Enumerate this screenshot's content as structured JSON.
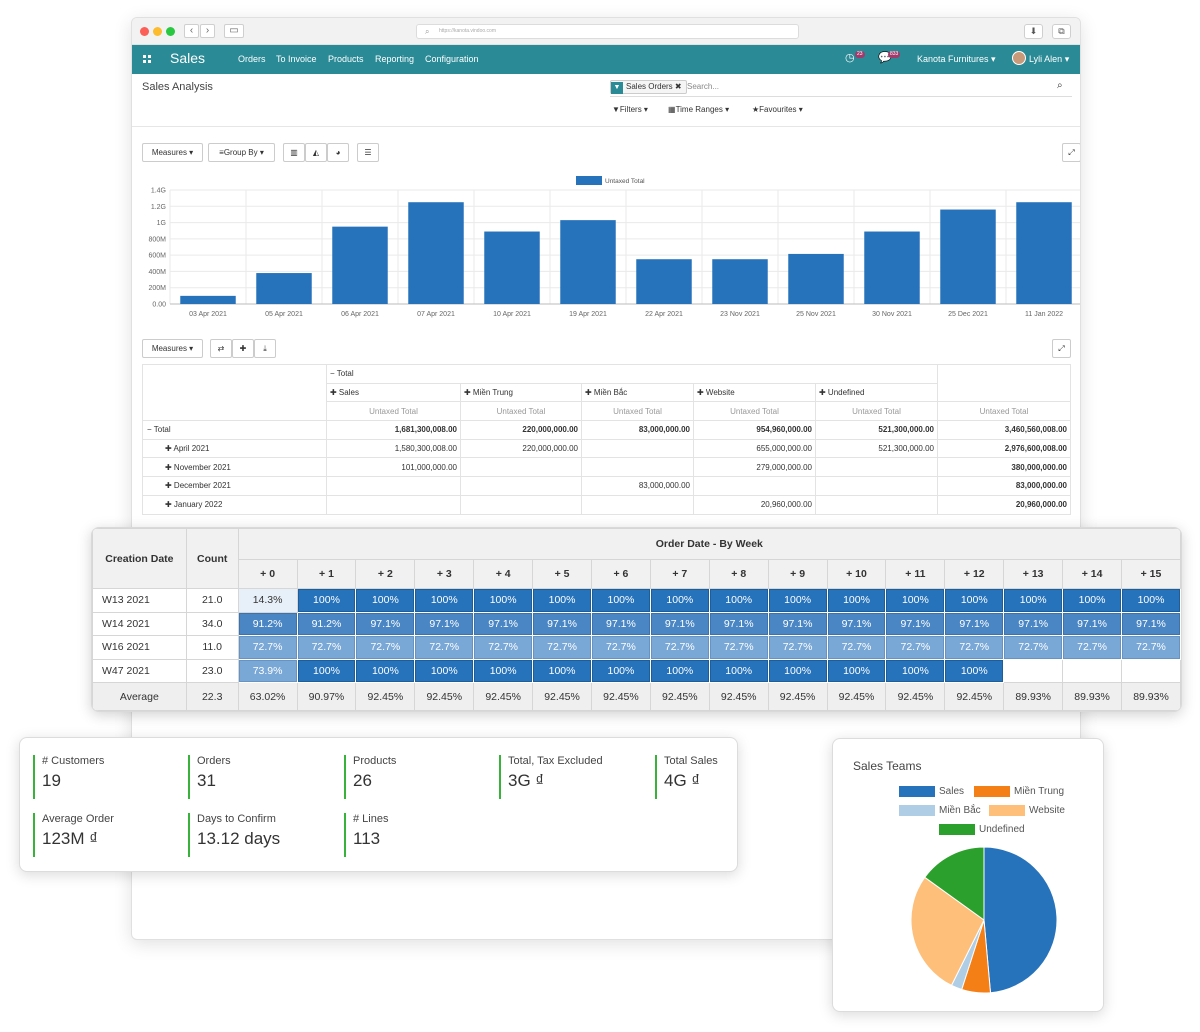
{
  "browser": {
    "url": "https://kanota.vindoo.com"
  },
  "navbar": {
    "app": "Sales",
    "menus": [
      "Orders",
      "To Invoice",
      "Products",
      "Reporting",
      "Configuration"
    ],
    "activity_count": "23",
    "message_count": "833",
    "company": "Kanota Furnitures",
    "user": "Lyli Alen"
  },
  "control_panel": {
    "title": "Sales Analysis",
    "facet": "Sales Orders",
    "search_placeholder": "Search...",
    "filters": "Filters",
    "time_ranges": "Time Ranges",
    "favourites": "Favourites",
    "measures": "Measures",
    "group_by": "Group By"
  },
  "colors": {
    "teal": "#2a8a96",
    "bar": "#2673bb",
    "green": "#38b23b",
    "orange": "#f47f17"
  },
  "chart_data": {
    "type": "bar",
    "legend": "Untaxed Total",
    "categories": [
      "03 Apr 2021",
      "05 Apr 2021",
      "06 Apr 2021",
      "07 Apr 2021",
      "10 Apr 2021",
      "19 Apr 2021",
      "22 Apr 2021",
      "23 Nov 2021",
      "25 Nov 2021",
      "30 Nov 2021",
      "25 Dec 2021",
      "11 Jan 2022"
    ],
    "values": [
      100000000,
      380000000,
      950000000,
      1250000000,
      890000000,
      1030000000,
      550000000,
      550000000,
      615000000,
      890000000,
      1160000000,
      1250000000
    ],
    "y_ticks": [
      "0.00",
      "200M",
      "400M",
      "600M",
      "800M",
      "1G",
      "1.2G",
      "1.4G"
    ],
    "ylim": [
      0,
      1400000000
    ],
    "grid": true,
    "legend_position": "top"
  },
  "pivot": {
    "measures": "Measures",
    "total_label": "Total",
    "columns": [
      "Sales",
      "Miền Trung",
      "Miền Bắc",
      "Website",
      "Undefined"
    ],
    "measure_label": "Untaxed Total",
    "rows": [
      {
        "label": "Total",
        "values": [
          "1,681,300,008.00",
          "220,000,000.00",
          "83,000,000.00",
          "954,960,000.00",
          "521,300,000.00",
          "3,460,560,008.00"
        ]
      },
      {
        "label": "April 2021",
        "values": [
          "1,580,300,008.00",
          "220,000,000.00",
          "",
          "655,000,000.00",
          "521,300,000.00",
          "2,976,600,008.00"
        ]
      },
      {
        "label": "November 2021",
        "values": [
          "101,000,000.00",
          "",
          "",
          "279,000,000.00",
          "",
          "380,000,000.00"
        ]
      },
      {
        "label": "December 2021",
        "values": [
          "",
          "",
          "83,000,000.00",
          "",
          "",
          "83,000,000.00"
        ]
      },
      {
        "label": "January 2022",
        "values": [
          "",
          "",
          "",
          "20,960,000.00",
          "",
          "20,960,000.00"
        ]
      }
    ]
  },
  "cohort": {
    "col_creation": "Creation Date",
    "col_count": "Count",
    "title": "Order Date - By Week",
    "periods": [
      "+ 0",
      "+ 1",
      "+ 2",
      "+ 3",
      "+ 4",
      "+ 5",
      "+ 6",
      "+ 7",
      "+ 8",
      "+ 9",
      "+ 10",
      "+ 11",
      "+ 12",
      "+ 13",
      "+ 14",
      "+ 15"
    ],
    "rows": [
      {
        "label": "W13 2021",
        "count": "21.0",
        "cells": [
          "14.3%",
          "100%",
          "100%",
          "100%",
          "100%",
          "100%",
          "100%",
          "100%",
          "100%",
          "100%",
          "100%",
          "100%",
          "100%",
          "100%",
          "100%",
          "100%"
        ]
      },
      {
        "label": "W14 2021",
        "count": "34.0",
        "cells": [
          "91.2%",
          "91.2%",
          "97.1%",
          "97.1%",
          "97.1%",
          "97.1%",
          "97.1%",
          "97.1%",
          "97.1%",
          "97.1%",
          "97.1%",
          "97.1%",
          "97.1%",
          "97.1%",
          "97.1%",
          "97.1%"
        ]
      },
      {
        "label": "W16 2021",
        "count": "11.0",
        "cells": [
          "72.7%",
          "72.7%",
          "72.7%",
          "72.7%",
          "72.7%",
          "72.7%",
          "72.7%",
          "72.7%",
          "72.7%",
          "72.7%",
          "72.7%",
          "72.7%",
          "72.7%",
          "72.7%",
          "72.7%",
          "72.7%"
        ]
      },
      {
        "label": "W47 2021",
        "count": "23.0",
        "cells": [
          "73.9%",
          "100%",
          "100%",
          "100%",
          "100%",
          "100%",
          "100%",
          "100%",
          "100%",
          "100%",
          "100%",
          "100%",
          "100%",
          "",
          "",
          ""
        ]
      }
    ],
    "average": {
      "label": "Average",
      "count": "22.3",
      "cells": [
        "63.02%",
        "90.97%",
        "92.45%",
        "92.45%",
        "92.45%",
        "92.45%",
        "92.45%",
        "92.45%",
        "92.45%",
        "92.45%",
        "92.45%",
        "92.45%",
        "92.45%",
        "89.93%",
        "89.93%",
        "89.93%"
      ]
    }
  },
  "kpis": [
    {
      "label": "# Customers",
      "value": "19"
    },
    {
      "label": "Orders",
      "value": "31"
    },
    {
      "label": "Products",
      "value": "26"
    },
    {
      "label": "Total, Tax Excluded",
      "value": "3G ₫"
    },
    {
      "label": "Total Sales",
      "value": "4G ₫"
    },
    {
      "label": "Average Order",
      "value": "123M ₫"
    },
    {
      "label": "Days to Confirm",
      "value": "13.12 days"
    },
    {
      "label": "# Lines",
      "value": "113"
    }
  ],
  "pie": {
    "title": "Sales Teams",
    "legend": [
      {
        "name": "Sales",
        "color": "#2673bb"
      },
      {
        "name": "Miền Trung",
        "color": "#f47f17"
      },
      {
        "name": "Miền Bắc",
        "color": "#b0cde6"
      },
      {
        "name": "Website",
        "color": "#fdbf7a"
      },
      {
        "name": "Undefined",
        "color": "#2ca02c"
      }
    ],
    "values": [
      1681300008,
      220000000,
      83000000,
      954960000,
      521300000
    ]
  }
}
